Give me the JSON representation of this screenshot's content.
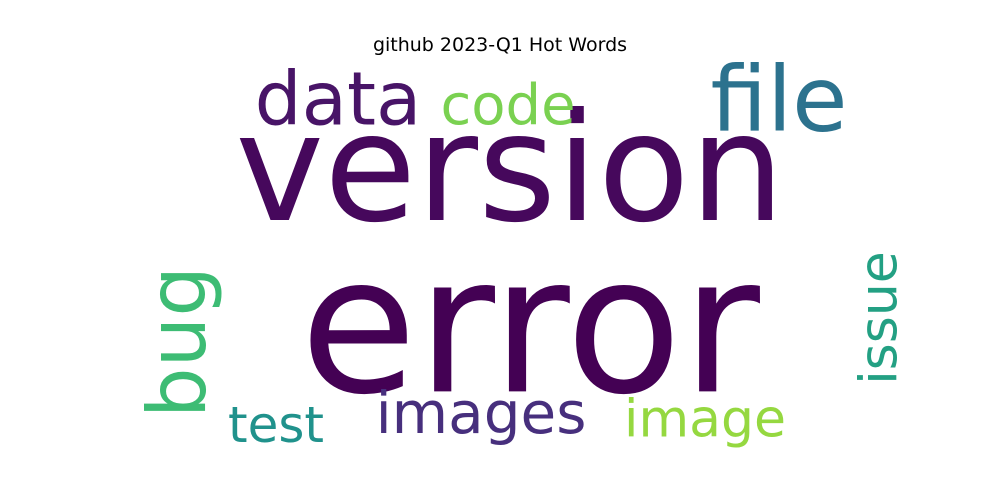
{
  "chart_data": {
    "type": "wordcloud",
    "title": "github 2023-Q1 Hot Words",
    "words": [
      {
        "text": "error",
        "rank": 1,
        "color": "#440154",
        "orientation": "horizontal"
      },
      {
        "text": "version",
        "rank": 2,
        "color": "#46085c",
        "orientation": "horizontal"
      },
      {
        "text": "data",
        "rank": 3,
        "color": "#481467",
        "orientation": "horizontal"
      },
      {
        "text": "file",
        "rank": 4,
        "color": "#2c728e",
        "orientation": "horizontal"
      },
      {
        "text": "images",
        "rank": 5,
        "color": "#472f7d",
        "orientation": "horizontal"
      },
      {
        "text": "bug",
        "rank": 6,
        "color": "#3dbc74",
        "orientation": "vertical"
      },
      {
        "text": "code",
        "rank": 7,
        "color": "#7ad151",
        "orientation": "horizontal"
      },
      {
        "text": "issue",
        "rank": 8,
        "color": "#23a083",
        "orientation": "vertical"
      },
      {
        "text": "test",
        "rank": 9,
        "color": "#20928c",
        "orientation": "horizontal"
      },
      {
        "text": "image",
        "rank": 10,
        "color": "#95d840",
        "orientation": "horizontal"
      }
    ]
  }
}
